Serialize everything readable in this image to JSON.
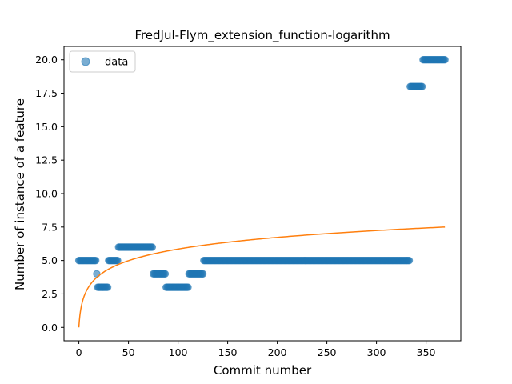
{
  "chart_data": {
    "type": "scatter",
    "title": "FredJul-Flym_extension_function-logarithm",
    "xlabel": "Commit number",
    "ylabel": "Number of instance of a feature",
    "xlim": [
      -15,
      385
    ],
    "ylim": [
      -1,
      21
    ],
    "x_ticks": [
      0,
      50,
      100,
      150,
      200,
      250,
      300,
      350
    ],
    "y_ticks": [
      0.0,
      2.5,
      5.0,
      7.5,
      10.0,
      12.5,
      15.0,
      17.5,
      20.0
    ],
    "x_tick_labels": [
      "0",
      "50",
      "100",
      "150",
      "200",
      "250",
      "300",
      "350"
    ],
    "y_tick_labels": [
      "0.0",
      "2.5",
      "5.0",
      "7.5",
      "10.0",
      "12.5",
      "15.0",
      "17.5",
      "20.0"
    ],
    "grid": false,
    "legend": {
      "placement": "top-left",
      "entries": [
        "data"
      ]
    },
    "series": [
      {
        "name": "data",
        "kind": "scatter",
        "color": "#1f77b4",
        "segments": [
          {
            "x_start": 0,
            "x_end": 17,
            "y": 5
          },
          {
            "x_start": 18,
            "x_end": 18,
            "y": 4
          },
          {
            "x_start": 19,
            "x_end": 29,
            "y": 3
          },
          {
            "x_start": 30,
            "x_end": 39,
            "y": 5
          },
          {
            "x_start": 40,
            "x_end": 74,
            "y": 6
          },
          {
            "x_start": 75,
            "x_end": 87,
            "y": 4
          },
          {
            "x_start": 88,
            "x_end": 110,
            "y": 3
          },
          {
            "x_start": 111,
            "x_end": 125,
            "y": 4
          },
          {
            "x_start": 126,
            "x_end": 333,
            "y": 5
          },
          {
            "x_start": 334,
            "x_end": 346,
            "y": 18
          },
          {
            "x_start": 347,
            "x_end": 369,
            "y": 20
          }
        ]
      },
      {
        "name": "",
        "kind": "line",
        "color": "#ff7f0e",
        "curve": "logarithmic",
        "x_range": [
          0,
          369
        ],
        "y_at_end": 7.5
      }
    ]
  }
}
